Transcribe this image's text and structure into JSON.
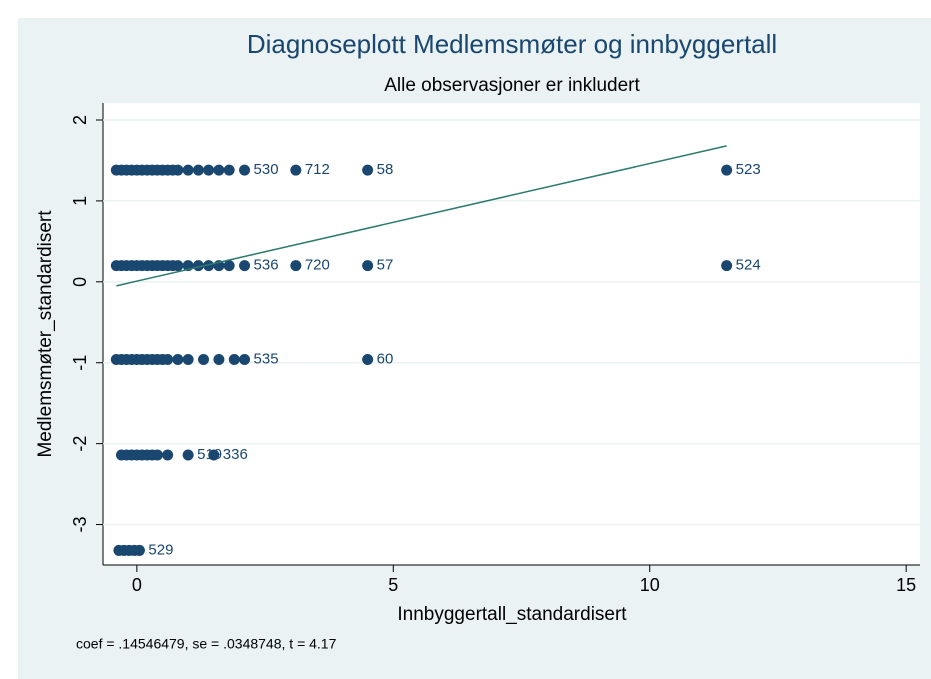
{
  "chart_data": {
    "type": "scatter",
    "title": "Diagnoseplott Medlemsmøter og innbyggertall",
    "subtitle": "Alle observasjoner er inkludert",
    "x_label": "Innbyggertall_standardisert",
    "y_label": "Medlemsmøter_standardisert",
    "note": "coef = .14546479, se = .0348748, t = 4.17",
    "color": "#1a476f",
    "fit_color": "#2d7a6e",
    "grid": true,
    "xlim": [
      -0.66,
      15.27
    ],
    "ylim": [
      -3.5,
      2.21
    ],
    "xticks": [
      0,
      5,
      10,
      15
    ],
    "yticks": [
      -3,
      -2,
      -1,
      0,
      1,
      2
    ],
    "x": [
      -0.4,
      -0.3,
      -0.2,
      -0.1,
      0,
      0.1,
      0.2,
      0.3,
      0.4,
      0.5,
      0.6,
      0.7,
      0.8,
      1.0,
      1.2,
      1.4,
      1.6,
      1.8,
      2.1,
      3.1,
      4.5,
      11.5,
      -0.4,
      -0.3,
      -0.2,
      -0.1,
      0,
      0.1,
      0.2,
      0.3,
      0.4,
      0.5,
      0.6,
      0.7,
      0.8,
      1.0,
      1.2,
      1.4,
      1.6,
      1.8,
      2.1,
      3.1,
      4.5,
      11.5,
      -0.4,
      -0.3,
      -0.2,
      -0.1,
      0,
      0.1,
      0.2,
      0.3,
      0.4,
      0.5,
      0.6,
      0.8,
      1.0,
      1.3,
      1.6,
      1.9,
      2.1,
      4.5,
      -0.3,
      -0.2,
      -0.1,
      0,
      0.1,
      0.2,
      0.3,
      0.4,
      0.6,
      1.0,
      1.5,
      -0.35,
      -0.25,
      -0.15,
      -0.05,
      0.05
    ],
    "values": [
      1.38,
      1.38,
      1.38,
      1.38,
      1.38,
      1.38,
      1.38,
      1.38,
      1.38,
      1.38,
      1.38,
      1.38,
      1.38,
      1.38,
      1.38,
      1.38,
      1.38,
      1.38,
      1.38,
      1.38,
      1.38,
      1.38,
      0.2,
      0.2,
      0.2,
      0.2,
      0.2,
      0.2,
      0.2,
      0.2,
      0.2,
      0.2,
      0.2,
      0.2,
      0.2,
      0.2,
      0.2,
      0.2,
      0.2,
      0.2,
      0.2,
      0.2,
      0.2,
      0.2,
      -0.96,
      -0.96,
      -0.96,
      -0.96,
      -0.96,
      -0.96,
      -0.96,
      -0.96,
      -0.96,
      -0.96,
      -0.96,
      -0.96,
      -0.96,
      -0.96,
      -0.96,
      -0.96,
      -0.96,
      -0.96,
      -2.14,
      -2.14,
      -2.14,
      -2.14,
      -2.14,
      -2.14,
      -2.14,
      -2.14,
      -2.14,
      -2.14,
      -2.14,
      -3.32,
      -3.32,
      -3.32,
      -3.32,
      -3.32
    ],
    "point_labels": [
      null,
      null,
      null,
      null,
      null,
      null,
      null,
      null,
      null,
      null,
      null,
      null,
      null,
      null,
      null,
      null,
      null,
      null,
      "530",
      "712",
      "58",
      "523",
      null,
      null,
      null,
      null,
      null,
      null,
      null,
      null,
      null,
      null,
      null,
      null,
      null,
      null,
      null,
      null,
      null,
      null,
      "536",
      "720",
      "57",
      "524",
      null,
      null,
      null,
      null,
      null,
      null,
      null,
      null,
      null,
      null,
      null,
      null,
      null,
      null,
      null,
      null,
      "535",
      "60",
      null,
      null,
      null,
      null,
      null,
      null,
      null,
      null,
      null,
      "519",
      "336",
      null,
      null,
      null,
      null,
      "529"
    ],
    "fit_line": {
      "x": [
        -0.4,
        11.5
      ],
      "y": [
        -0.05,
        1.68
      ]
    }
  }
}
